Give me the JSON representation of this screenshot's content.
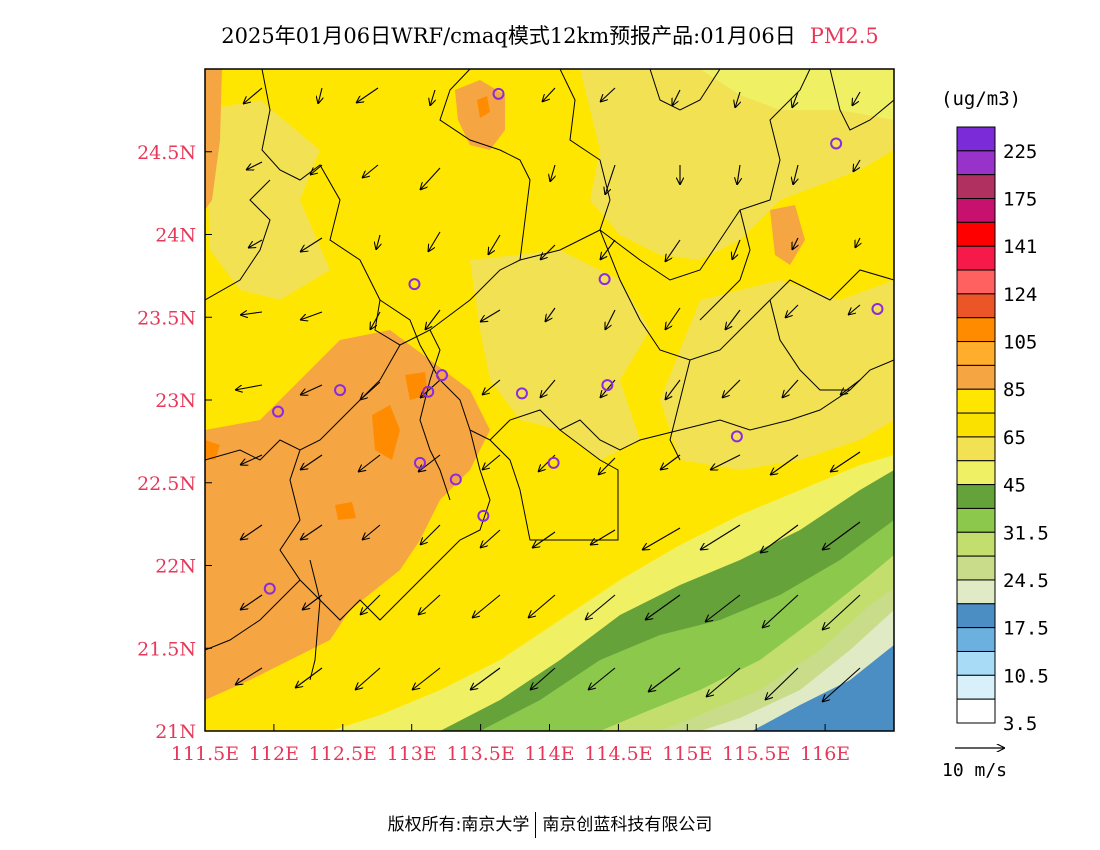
{
  "header": {
    "title": "2025年01月06日WRF/cmaq模式12km预报产品:01月06日",
    "pollutant": "PM2.5"
  },
  "map": {
    "lon_ticks": [
      "111.5E",
      "112E",
      "112.5E",
      "113E",
      "113.5E",
      "114E",
      "114.5E",
      "115E",
      "115.5E",
      "116E"
    ],
    "lat_ticks": [
      "24.5N",
      "24N",
      "23.5N",
      "23N",
      "22.5N",
      "22N",
      "21.5N",
      "21N"
    ],
    "tick_color": "#e8385a",
    "stations": [
      {
        "lon": 113.63,
        "lat": 24.85
      },
      {
        "lon": 116.08,
        "lat": 24.55
      },
      {
        "lon": 113.02,
        "lat": 23.7
      },
      {
        "lon": 114.4,
        "lat": 23.73
      },
      {
        "lon": 116.38,
        "lat": 23.55
      },
      {
        "lon": 113.22,
        "lat": 23.15
      },
      {
        "lon": 112.48,
        "lat": 23.06
      },
      {
        "lon": 113.12,
        "lat": 23.05
      },
      {
        "lon": 113.8,
        "lat": 23.04
      },
      {
        "lon": 114.42,
        "lat": 23.09
      },
      {
        "lon": 112.03,
        "lat": 22.93
      },
      {
        "lon": 115.36,
        "lat": 22.78
      },
      {
        "lon": 113.06,
        "lat": 22.62
      },
      {
        "lon": 114.03,
        "lat": 22.62
      },
      {
        "lon": 113.32,
        "lat": 22.52
      },
      {
        "lon": 113.52,
        "lat": 22.3
      },
      {
        "lon": 111.97,
        "lat": 21.86
      }
    ]
  },
  "legend": {
    "unit": "(ug/m3)",
    "labels": [
      "225",
      "175",
      "141",
      "124",
      "105",
      "85",
      "65",
      "45",
      "31.5",
      "24.5",
      "17.5",
      "10.5",
      "3.5"
    ],
    "colors": [
      "#7b2bd8",
      "#9932c8",
      "#b03060",
      "#c8106e",
      "#ff0000",
      "#f51a4a",
      "#ff6060",
      "#ec5528",
      "#ff8c00",
      "#ffad2a",
      "#f5a542",
      "#ffe600",
      "#fae100",
      "#f2e152",
      "#f0f064",
      "#66a23a",
      "#8cc84c",
      "#c4de6e",
      "#c8dc8a",
      "#e0eac4",
      "#4a8ec4",
      "#6cb0e0",
      "#a8dcf6",
      "#d8f0fa",
      "#ffffff"
    ]
  },
  "wind": {
    "scale_label": "10 m/s",
    "direction": "northeasterly"
  },
  "footer": {
    "left": "版权所有:南京大学",
    "right": "南京创蓝科技有限公司"
  }
}
